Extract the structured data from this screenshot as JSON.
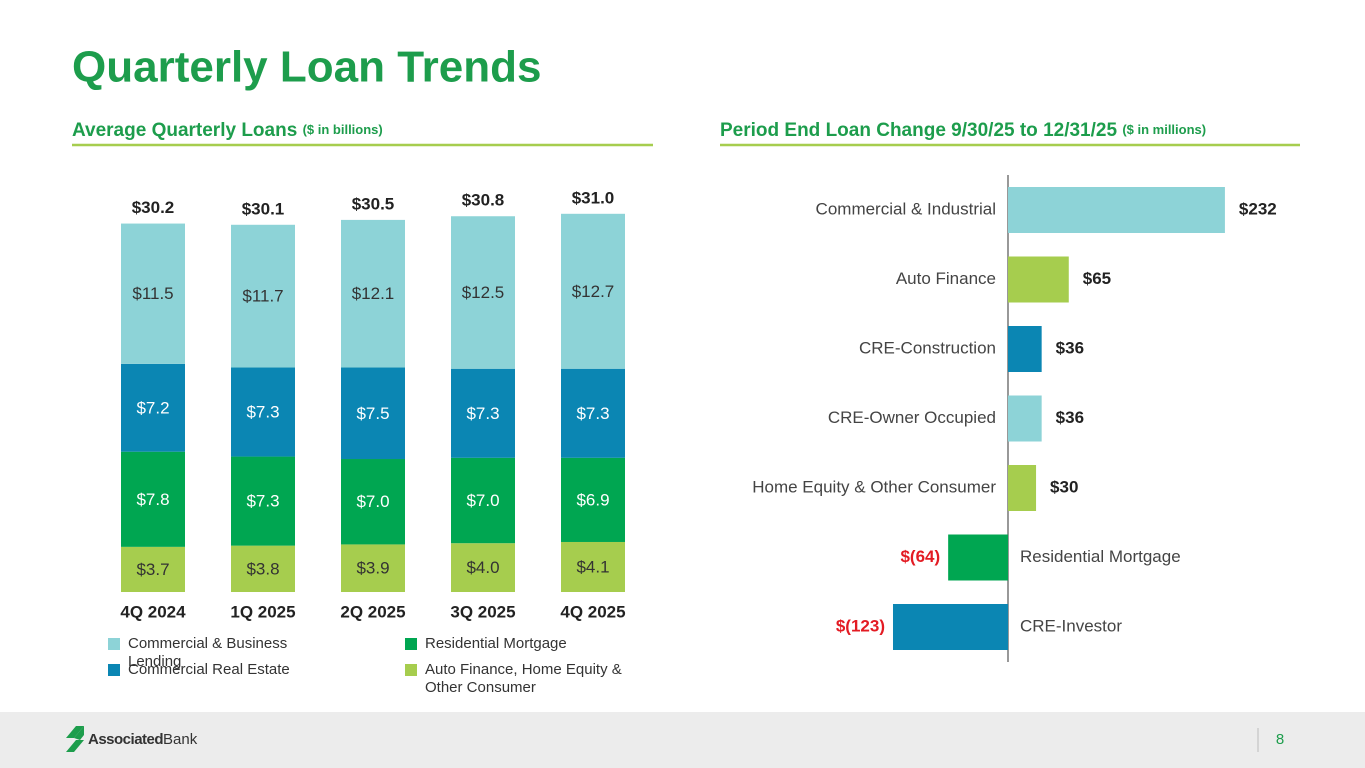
{
  "title": "Quarterly Loan Trends",
  "chart_data": [
    {
      "type": "stacked_bar",
      "title": "Average Quarterly Loans",
      "subtitle": "($ in billions)",
      "categories": [
        "4Q 2024",
        "1Q 2025",
        "2Q 2025",
        "3Q 2025",
        "4Q 2025"
      ],
      "series": [
        {
          "name": "Auto Finance, Home Equity & Other Consumer",
          "color": "#a6cd4e",
          "values": [
            3.7,
            3.8,
            3.9,
            4.0,
            4.1
          ],
          "value_labels": [
            "$3.7",
            "$3.8",
            "$3.9",
            "$4.0",
            "$4.1"
          ]
        },
        {
          "name": "Residential Mortgage",
          "color": "#00a651",
          "values": [
            7.8,
            7.3,
            7.0,
            7.0,
            6.9
          ],
          "value_labels": [
            "$7.8",
            "$7.3",
            "$7.0",
            "$7.0",
            "$6.9"
          ]
        },
        {
          "name": "Commercial Real Estate",
          "color": "#0b86b3",
          "values": [
            7.2,
            7.3,
            7.5,
            7.3,
            7.3
          ],
          "value_labels": [
            "$7.2",
            "$7.3",
            "$7.5",
            "$7.3",
            "$7.3"
          ]
        },
        {
          "name": "Commercial & Business Lending",
          "color": "#8dd3d7",
          "values": [
            11.5,
            11.7,
            12.1,
            12.5,
            12.7
          ],
          "value_labels": [
            "$11.5",
            "$11.7",
            "$12.1",
            "$12.5",
            "$12.7"
          ]
        }
      ],
      "totals": [
        30.2,
        30.1,
        30.5,
        30.8,
        31.0
      ],
      "total_labels": [
        "$30.2",
        "$30.1",
        "$30.5",
        "$30.8",
        "$31.0"
      ]
    },
    {
      "type": "hbar",
      "title": "Period End Loan Change 9/30/25 to 12/31/25",
      "subtitle": "($ in millions)",
      "categories": [
        "Commercial & Industrial",
        "Auto Finance",
        "CRE-Construction",
        "CRE-Owner Occupied",
        "Home Equity & Other Consumer",
        "Residential Mortgage",
        "CRE-Investor"
      ],
      "values": [
        232,
        65,
        36,
        36,
        30,
        -64,
        -123
      ],
      "value_labels": [
        "$232",
        "$65",
        "$36",
        "$36",
        "$30",
        "$(64)",
        "$(123)"
      ],
      "colors": [
        "#8dd3d7",
        "#a6cd4e",
        "#0b86b3",
        "#8dd3d7",
        "#a6cd4e",
        "#00a651",
        "#0b86b3"
      ]
    }
  ],
  "footer": {
    "logo": [
      "Associated",
      "Bank"
    ],
    "page_number": 8
  }
}
